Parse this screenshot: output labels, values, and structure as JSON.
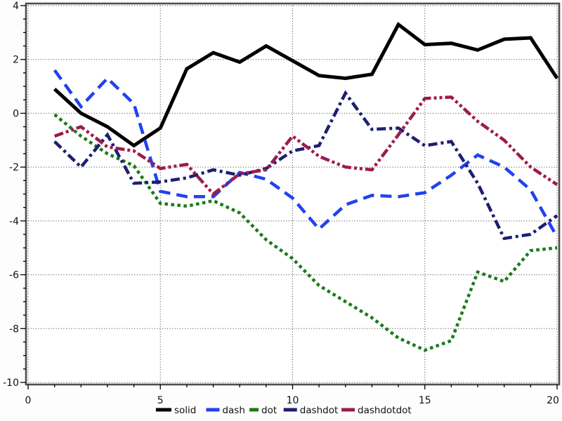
{
  "chart_data": {
    "type": "line",
    "title": "",
    "xlabel": "",
    "ylabel": "",
    "xlim": [
      0,
      20
    ],
    "ylim": [
      -10,
      4
    ],
    "grid": "dotted at major ticks, both axes",
    "legend_position": "bottom-center",
    "x_tick_labels": [
      "0",
      "5",
      "10",
      "15",
      "20"
    ],
    "x_major_ticks": [
      0,
      5,
      10,
      15,
      20
    ],
    "x_minor_step": 1,
    "y_tick_labels": [
      "4",
      "2",
      "0",
      "-2",
      "-4",
      "-6",
      "-8",
      "-10"
    ],
    "y_major_ticks": [
      4,
      2,
      0,
      -2,
      -4,
      -6,
      -8,
      -10
    ],
    "y_minor_step": 0.5,
    "x": [
      1,
      2,
      3,
      4,
      5,
      6,
      7,
      8,
      9,
      10,
      11,
      12,
      13,
      14,
      15,
      16,
      17,
      18,
      19,
      20
    ],
    "series": [
      {
        "name": "solid",
        "color": "#000000",
        "line_style": "solid",
        "values": [
          0.9,
          0.0,
          -0.5,
          -1.2,
          -0.55,
          1.65,
          2.25,
          1.9,
          2.5,
          1.95,
          1.4,
          1.3,
          1.45,
          3.3,
          2.55,
          2.6,
          2.35,
          2.75,
          2.8,
          1.3
        ]
      },
      {
        "name": "dash",
        "color": "#2141F0",
        "line_style": "dash",
        "values": [
          1.6,
          0.25,
          1.3,
          0.35,
          -2.9,
          -3.1,
          -3.1,
          -2.2,
          -2.45,
          -3.15,
          -4.3,
          -3.4,
          -3.05,
          -3.1,
          -2.95,
          -2.3,
          -1.55,
          -2.0,
          -2.85,
          -4.6
        ]
      },
      {
        "name": "dot",
        "color": "#1B7A1B",
        "line_style": "dot",
        "values": [
          -0.05,
          -0.85,
          -1.5,
          -1.95,
          -3.35,
          -3.45,
          -3.25,
          -3.7,
          -4.7,
          -5.4,
          -6.4,
          -7.0,
          -7.6,
          -8.35,
          -8.8,
          -8.45,
          -5.9,
          -6.25,
          -5.1,
          -5.0
        ]
      },
      {
        "name": "dashdot",
        "color": "#1D1F70",
        "line_style": "dashdot",
        "values": [
          -1.05,
          -2.0,
          -0.8,
          -2.6,
          -2.55,
          -2.4,
          -2.1,
          -2.3,
          -2.05,
          -1.4,
          -1.2,
          0.75,
          -0.6,
          -0.55,
          -1.2,
          -1.05,
          -2.6,
          -4.65,
          -4.5,
          -3.8
        ]
      },
      {
        "name": "dashdotdot",
        "color": "#9C1B4E",
        "line_style": "dashdotdot",
        "values": [
          -0.85,
          -0.5,
          -1.25,
          -1.4,
          -2.05,
          -1.9,
          -3.0,
          -2.25,
          -2.1,
          -0.85,
          -1.6,
          -2.0,
          -2.1,
          -0.8,
          0.55,
          0.6,
          -0.3,
          -1.0,
          -2.0,
          -2.65
        ]
      }
    ],
    "legend_labels": [
      "solid",
      "dash",
      "dot",
      "dashdot",
      "dashdotdot"
    ],
    "frame_color": "#4f4f4f",
    "grid_color": "#3a3a3a",
    "background": "#fdfdfd"
  }
}
